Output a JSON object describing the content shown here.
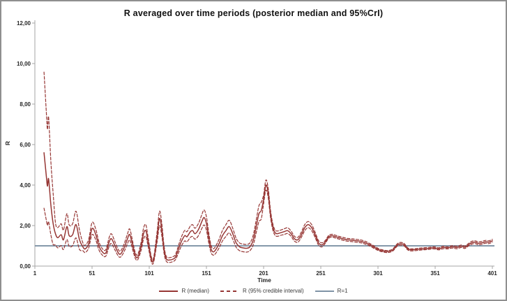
{
  "title": "R averaged over time periods (posterior median and 95%CrI)",
  "y_axis": {
    "label": "R",
    "ticks": [
      "12,00",
      "10,00",
      "8,00",
      "6,00",
      "4,00",
      "2,00",
      "0,00"
    ],
    "tick_values": [
      12,
      10,
      8,
      6,
      4,
      2,
      0
    ]
  },
  "x_axis": {
    "label": "Time",
    "ticks": [
      "1",
      "51",
      "101",
      "151",
      "201",
      "251",
      "301",
      "351",
      "401"
    ],
    "tick_values": [
      1,
      51,
      101,
      151,
      201,
      251,
      301,
      351,
      401
    ]
  },
  "legend": [
    {
      "label": "R (median)",
      "style": "solid",
      "color": "#963634"
    },
    {
      "label": "R (95% credible interval)",
      "style": "dashed",
      "color": "#963634"
    },
    {
      "label": "R=1",
      "style": "solid",
      "color": "#7f93a6"
    }
  ],
  "colors": {
    "series_red": "#963634",
    "reference_blue": "#7f93a6",
    "axis_gray": "#a6a6a6",
    "tick_text": "#262626"
  },
  "chart_data": {
    "type": "line",
    "title": "R averaged over time periods (posterior median and 95%CrI)",
    "xlabel": "Time",
    "ylabel": "R",
    "xlim": [
      1,
      401
    ],
    "ylim": [
      0,
      12
    ],
    "grid": false,
    "legend_position": "bottom",
    "x": [
      9,
      11,
      12,
      13,
      15,
      17,
      19,
      21,
      24,
      26,
      29,
      31,
      34,
      37,
      40,
      43,
      45,
      48,
      51,
      54,
      57,
      60,
      63,
      66,
      68,
      71,
      74,
      76,
      79,
      82,
      84,
      87,
      89,
      91,
      94,
      96,
      98,
      100,
      103,
      105,
      108,
      110,
      112,
      114,
      116,
      119,
      122,
      124,
      127,
      129,
      132,
      134,
      137,
      139,
      141,
      144,
      147,
      149,
      151,
      153,
      155,
      157,
      159,
      162,
      165,
      168,
      171,
      174,
      177,
      180,
      183,
      186,
      189,
      192,
      195,
      197,
      199,
      201,
      203,
      205,
      207,
      209,
      211,
      213,
      216,
      219,
      222,
      225,
      228,
      231,
      234,
      237,
      240,
      243,
      246,
      249,
      252,
      255,
      258,
      261,
      264,
      267,
      270,
      274,
      278,
      282,
      286,
      290,
      294,
      298,
      302,
      306,
      310,
      314,
      318,
      321,
      324,
      327,
      330,
      335,
      340,
      345,
      350,
      354,
      358,
      362,
      366,
      370,
      374,
      377,
      380,
      383,
      386,
      389,
      392,
      395,
      398,
      401
    ],
    "series": [
      {
        "name": "R (median)",
        "style": "solid",
        "color": "#963634",
        "values": [
          5.6,
          4.45,
          3.95,
          4.3,
          3.0,
          2.1,
          1.6,
          1.4,
          1.55,
          1.3,
          1.95,
          1.5,
          1.55,
          2.05,
          1.3,
          0.95,
          0.85,
          1.1,
          1.85,
          1.6,
          1.0,
          0.7,
          0.65,
          1.2,
          1.35,
          1.0,
          0.65,
          0.6,
          0.9,
          1.35,
          1.55,
          0.9,
          0.5,
          0.45,
          1.0,
          1.6,
          1.75,
          1.2,
          0.3,
          0.35,
          1.5,
          2.35,
          1.8,
          0.8,
          0.35,
          0.3,
          0.35,
          0.45,
          0.9,
          1.2,
          1.5,
          1.45,
          1.7,
          1.75,
          1.6,
          1.8,
          2.2,
          2.4,
          2.1,
          1.4,
          0.85,
          0.7,
          0.8,
          1.1,
          1.5,
          1.75,
          1.95,
          1.6,
          1.15,
          0.95,
          0.9,
          0.88,
          0.95,
          1.3,
          2.1,
          2.6,
          2.75,
          3.3,
          4.0,
          3.6,
          2.6,
          1.95,
          1.65,
          1.6,
          1.65,
          1.7,
          1.75,
          1.6,
          1.35,
          1.3,
          1.55,
          1.9,
          2.05,
          1.9,
          1.55,
          1.15,
          1.05,
          1.2,
          1.45,
          1.5,
          1.45,
          1.4,
          1.35,
          1.3,
          1.28,
          1.25,
          1.22,
          1.15,
          1.05,
          0.92,
          0.8,
          0.74,
          0.72,
          0.8,
          1.05,
          1.1,
          1.05,
          0.85,
          0.8,
          0.82,
          0.85,
          0.87,
          0.9,
          0.85,
          0.92,
          0.9,
          0.95,
          0.92,
          0.98,
          0.93,
          1.05,
          1.15,
          1.18,
          1.12,
          1.15,
          1.2,
          1.18,
          1.25
        ]
      },
      {
        "name": "R (95% credible interval) upper",
        "style": "dashed",
        "color": "#963634",
        "values": [
          9.58,
          7.61,
          6.75,
          7.35,
          5.13,
          3.59,
          2.15,
          1.9,
          2.09,
          1.78,
          2.59,
          2.03,
          2.09,
          2.71,
          1.78,
          1.14,
          1.03,
          1.31,
          2.15,
          1.87,
          1.2,
          0.86,
          0.81,
          1.42,
          1.59,
          1.2,
          0.81,
          0.75,
          1.09,
          1.59,
          1.82,
          1.09,
          0.64,
          0.58,
          1.2,
          1.87,
          2.04,
          1.42,
          0.42,
          0.47,
          1.76,
          2.71,
          2.1,
          0.98,
          0.47,
          0.42,
          0.47,
          0.58,
          1.09,
          1.42,
          1.76,
          1.7,
          1.98,
          2.04,
          1.87,
          2.1,
          2.54,
          2.77,
          2.43,
          1.65,
          1.03,
          0.86,
          0.98,
          1.31,
          1.76,
          2.04,
          2.26,
          1.87,
          1.37,
          1.14,
          1.09,
          1.07,
          1.14,
          1.54,
          2.43,
          2.99,
          3.16,
          3.52,
          4.25,
          3.83,
          2.78,
          2.1,
          1.78,
          1.73,
          1.78,
          1.84,
          1.89,
          1.73,
          1.47,
          1.42,
          1.68,
          2.05,
          2.2,
          2.05,
          1.68,
          1.26,
          1.15,
          1.27,
          1.52,
          1.57,
          1.52,
          1.47,
          1.42,
          1.37,
          1.35,
          1.32,
          1.29,
          1.22,
          1.11,
          0.98,
          0.85,
          0.79,
          0.77,
          0.85,
          1.11,
          1.17,
          1.11,
          0.9,
          0.85,
          0.87,
          0.9,
          0.92,
          0.95,
          0.9,
          0.98,
          0.95,
          1.01,
          0.98,
          1.04,
          0.99,
          1.11,
          1.22,
          1.25,
          1.19,
          1.22,
          1.27,
          1.25,
          1.32
        ]
      },
      {
        "name": "R (95% credible interval) lower",
        "style": "dashed",
        "color": "#963634",
        "values": [
          2.86,
          2.27,
          2.01,
          2.19,
          1.53,
          1.07,
          1.05,
          0.9,
          1.01,
          0.82,
          1.31,
          0.97,
          1.01,
          1.39,
          0.82,
          0.76,
          0.67,
          0.89,
          1.55,
          1.33,
          0.8,
          0.54,
          0.49,
          0.98,
          1.11,
          0.8,
          0.49,
          0.45,
          0.71,
          1.11,
          1.28,
          0.71,
          0.36,
          0.32,
          0.8,
          1.33,
          1.46,
          0.98,
          0.18,
          0.23,
          1.24,
          1.99,
          1.5,
          0.62,
          0.23,
          0.18,
          0.23,
          0.32,
          0.71,
          0.98,
          1.24,
          1.2,
          1.42,
          1.46,
          1.33,
          1.5,
          1.86,
          2.03,
          1.77,
          1.15,
          0.67,
          0.54,
          0.62,
          0.89,
          1.24,
          1.46,
          1.64,
          1.33,
          0.93,
          0.76,
          0.71,
          0.69,
          0.76,
          1.06,
          1.77,
          2.21,
          2.34,
          3.08,
          3.75,
          3.37,
          2.42,
          1.8,
          1.52,
          1.47,
          1.52,
          1.56,
          1.61,
          1.47,
          1.23,
          1.18,
          1.42,
          1.75,
          1.9,
          1.75,
          1.42,
          1.04,
          0.95,
          1.13,
          1.38,
          1.43,
          1.38,
          1.33,
          1.28,
          1.23,
          1.21,
          1.18,
          1.15,
          1.08,
          0.99,
          0.86,
          0.75,
          0.69,
          0.67,
          0.75,
          0.99,
          1.03,
          0.99,
          0.8,
          0.75,
          0.77,
          0.8,
          0.82,
          0.85,
          0.8,
          0.86,
          0.85,
          0.89,
          0.86,
          0.92,
          0.87,
          0.99,
          1.08,
          1.11,
          1.05,
          1.08,
          1.13,
          1.11,
          1.18
        ]
      },
      {
        "name": "R=1",
        "style": "solid",
        "color": "#7f93a6",
        "constant": 1
      }
    ]
  }
}
